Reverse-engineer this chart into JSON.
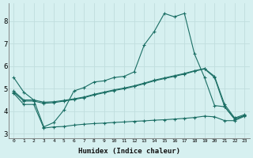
{
  "xlabel": "Humidex (Indice chaleur)",
  "background_color": "#d6f0f0",
  "grid_color": "#c0dede",
  "line_color": "#1a6e64",
  "xlim": [
    -0.5,
    23.5
  ],
  "ylim": [
    2.8,
    8.8
  ],
  "xticks": [
    0,
    1,
    2,
    3,
    4,
    5,
    6,
    7,
    8,
    9,
    10,
    11,
    12,
    13,
    14,
    15,
    16,
    17,
    18,
    19,
    20,
    21,
    22,
    23
  ],
  "yticks": [
    3,
    4,
    5,
    6,
    7,
    8
  ],
  "series": {
    "line1": {
      "x": [
        0,
        1,
        2,
        3,
        4,
        5,
        6,
        7,
        8,
        9,
        10,
        11,
        12,
        13,
        14,
        15,
        16,
        17,
        18,
        19,
        20,
        21,
        22,
        23
      ],
      "y": [
        5.5,
        4.85,
        4.5,
        3.3,
        3.5,
        4.05,
        4.9,
        5.05,
        5.3,
        5.35,
        5.5,
        5.55,
        5.75,
        6.95,
        7.55,
        8.35,
        8.2,
        8.35,
        6.55,
        5.5,
        4.25,
        4.2,
        3.65,
        3.8
      ]
    },
    "line2": {
      "x": [
        0,
        1,
        2,
        3,
        4,
        5,
        6,
        7,
        8,
        9,
        10,
        11,
        12,
        13,
        14,
        15,
        16,
        17,
        18,
        19,
        20,
        21,
        22,
        23
      ],
      "y": [
        4.85,
        4.45,
        4.45,
        4.35,
        4.38,
        4.45,
        4.52,
        4.6,
        4.72,
        4.82,
        4.92,
        5.0,
        5.1,
        5.22,
        5.35,
        5.45,
        5.55,
        5.65,
        5.78,
        5.88,
        5.5,
        4.2,
        3.65,
        3.8
      ]
    },
    "line3": {
      "x": [
        0,
        1,
        2,
        3,
        4,
        5,
        6,
        7,
        8,
        9,
        10,
        11,
        12,
        13,
        14,
        15,
        16,
        17,
        18,
        19,
        20,
        21,
        22,
        23
      ],
      "y": [
        4.9,
        4.5,
        4.5,
        4.4,
        4.42,
        4.48,
        4.55,
        4.63,
        4.75,
        4.85,
        4.95,
        5.03,
        5.13,
        5.25,
        5.38,
        5.48,
        5.58,
        5.68,
        5.8,
        5.9,
        5.55,
        4.3,
        3.7,
        3.85
      ]
    },
    "line4": {
      "x": [
        0,
        1,
        2,
        3,
        4,
        5,
        6,
        7,
        8,
        9,
        10,
        11,
        12,
        13,
        14,
        15,
        16,
        17,
        18,
        19,
        20,
        21,
        22,
        23
      ],
      "y": [
        4.8,
        4.3,
        4.3,
        3.25,
        3.3,
        3.32,
        3.38,
        3.42,
        3.45,
        3.47,
        3.5,
        3.52,
        3.55,
        3.57,
        3.6,
        3.62,
        3.65,
        3.68,
        3.72,
        3.78,
        3.75,
        3.58,
        3.58,
        3.78
      ]
    }
  }
}
